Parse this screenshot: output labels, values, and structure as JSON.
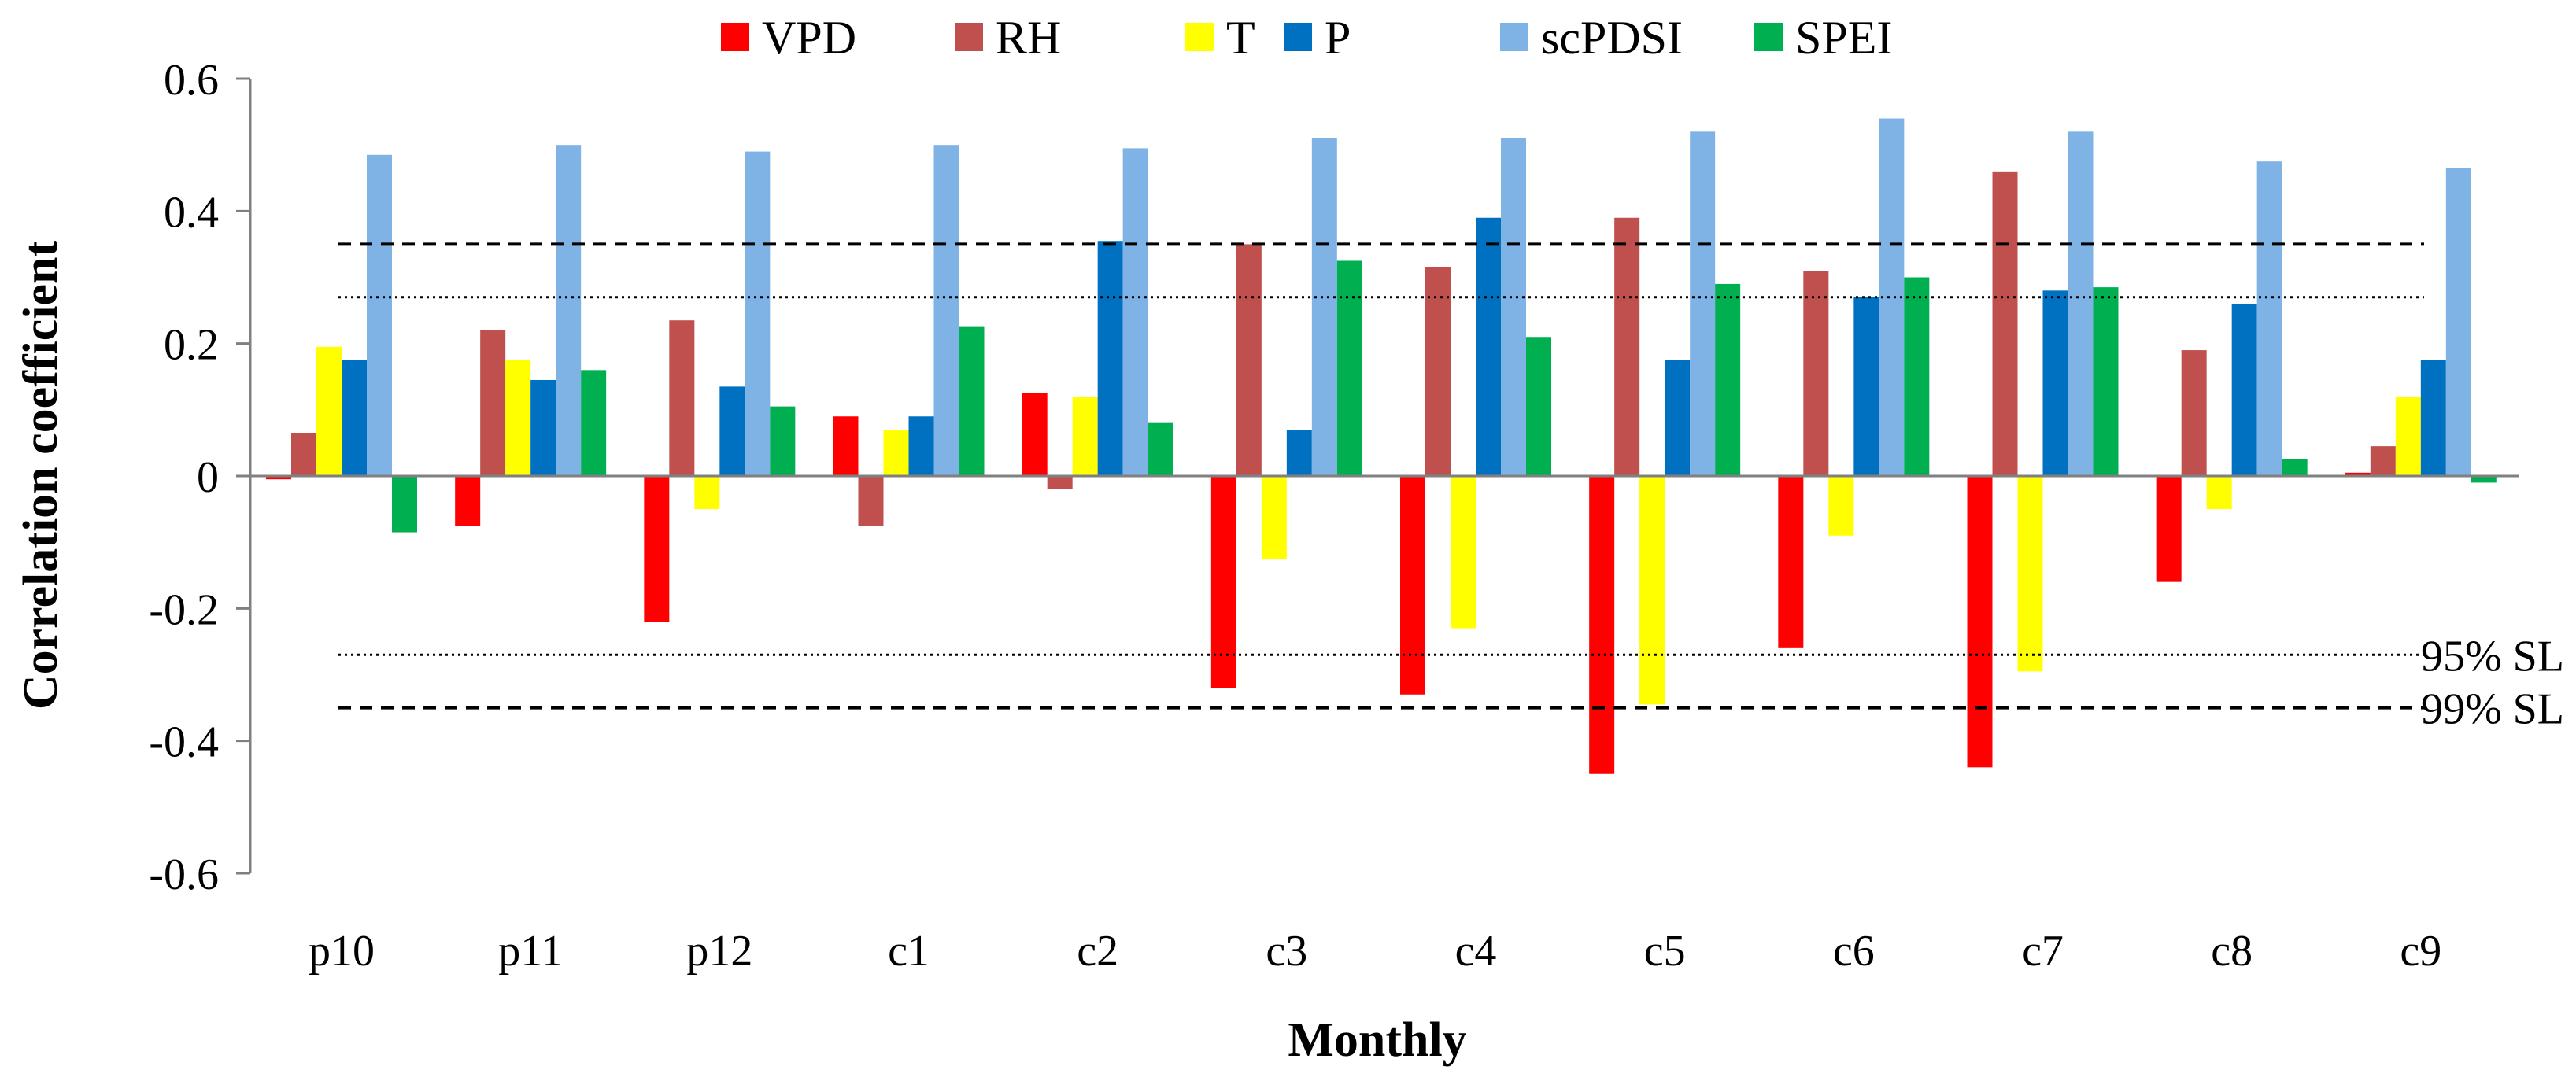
{
  "chart_data": {
    "type": "bar",
    "title": "",
    "xlabel": "Monthly",
    "ylabel": "Correlation  coefficient",
    "ylim": [
      -0.6,
      0.6
    ],
    "yticks": [
      0.6,
      0.4,
      0.2,
      0,
      -0.2,
      -0.4,
      -0.6
    ],
    "ytick_labels": [
      "0.6",
      "0.4",
      "0.2",
      "0",
      "-0.2",
      "-0.4",
      "-0.6"
    ],
    "grid": false,
    "legend_position": "top",
    "categories": [
      "p10",
      "p11",
      "p12",
      "c1",
      "c2",
      "c3",
      "c4",
      "c5",
      "c6",
      "c7",
      "c8",
      "c9"
    ],
    "series": [
      {
        "name": "VPD",
        "color": "#ff0000",
        "values": [
          -0.005,
          -0.075,
          -0.22,
          0.09,
          0.125,
          -0.32,
          -0.33,
          -0.45,
          -0.26,
          -0.44,
          -0.16,
          0.005
        ]
      },
      {
        "name": "RH",
        "color": "#c0504d",
        "values": [
          0.065,
          0.22,
          0.235,
          -0.075,
          -0.02,
          0.35,
          0.315,
          0.39,
          0.31,
          0.46,
          0.19,
          0.045
        ]
      },
      {
        "name": "T",
        "color": "#ffff00",
        "values": [
          0.195,
          0.175,
          -0.05,
          0.07,
          0.12,
          -0.125,
          -0.23,
          -0.345,
          -0.09,
          -0.295,
          -0.05,
          0.12
        ]
      },
      {
        "name": "P",
        "color": "#0070c0",
        "values": [
          0.175,
          0.145,
          0.135,
          0.09,
          0.355,
          0.07,
          0.39,
          0.175,
          0.27,
          0.28,
          0.26,
          0.175
        ]
      },
      {
        "name": "scPDSI",
        "color": "#7fb3e6",
        "values": [
          0.485,
          0.5,
          0.49,
          0.5,
          0.495,
          0.51,
          0.51,
          0.52,
          0.54,
          0.52,
          0.475,
          0.465
        ]
      },
      {
        "name": "SPEI",
        "color": "#00b050",
        "values": [
          -0.085,
          0.16,
          0.105,
          0.225,
          0.08,
          0.325,
          0.21,
          0.29,
          0.3,
          0.285,
          0.025,
          -0.01
        ]
      }
    ],
    "reference_lines": [
      {
        "name": "99-upper",
        "value": 0.35,
        "style": "dashed",
        "label": ""
      },
      {
        "name": "95-upper",
        "value": 0.27,
        "style": "dotted",
        "label": ""
      },
      {
        "name": "95-lower",
        "value": -0.27,
        "style": "dotted",
        "label": "95% SL"
      },
      {
        "name": "99-lower",
        "value": -0.35,
        "style": "dashed",
        "label": "99% SL"
      }
    ]
  }
}
